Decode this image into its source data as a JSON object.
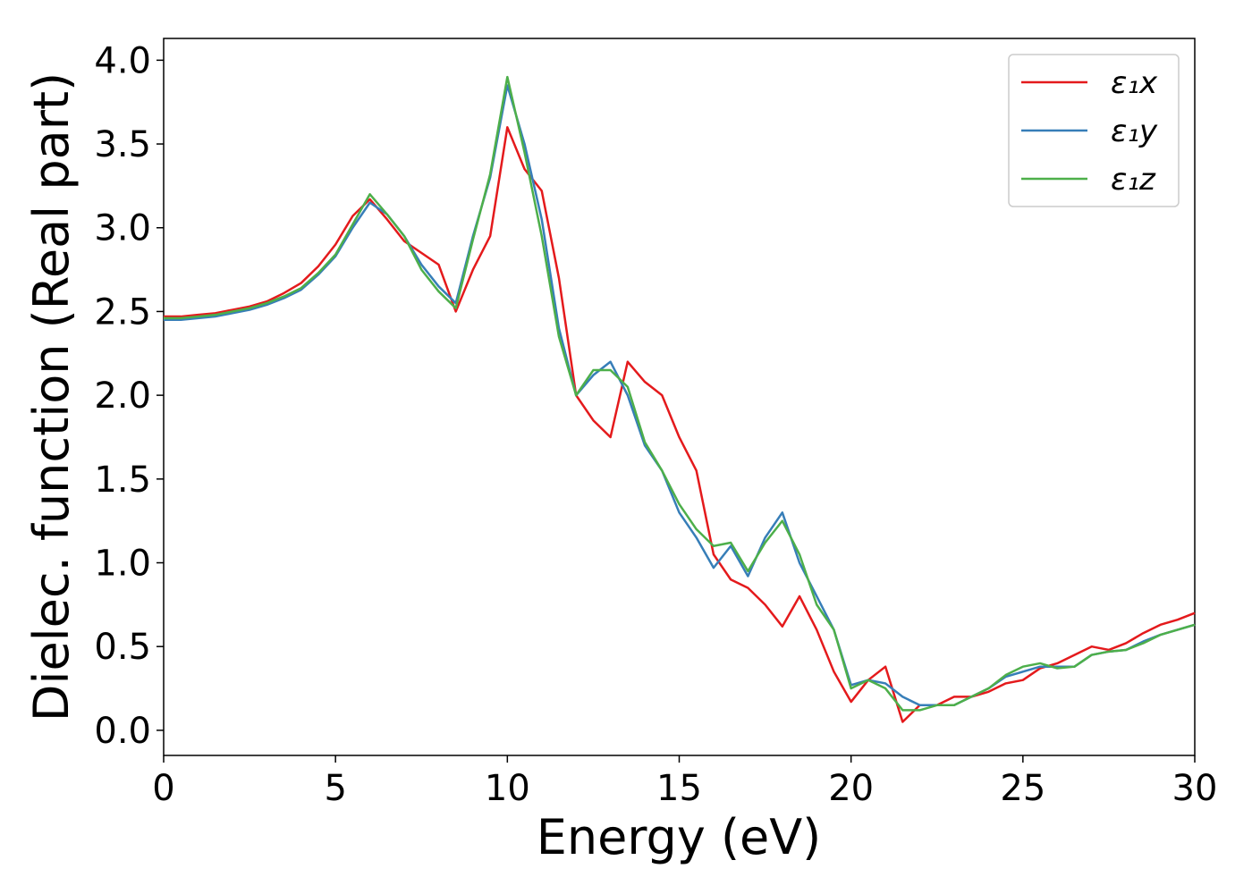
{
  "chart_data": {
    "type": "line",
    "xlabel": "Energy (eV)",
    "ylabel": "Dielec. function (Real part)",
    "x": [
      0,
      0.5,
      1,
      1.5,
      2,
      2.5,
      3,
      3.5,
      4,
      4.5,
      5,
      5.5,
      6,
      6.5,
      7,
      7.5,
      8,
      8.5,
      9,
      9.5,
      10,
      10.5,
      11,
      11.5,
      12,
      12.5,
      13,
      13.5,
      14,
      14.5,
      15,
      15.5,
      16,
      16.5,
      17,
      17.5,
      18,
      18.5,
      19,
      19.5,
      20,
      20.5,
      21,
      21.5,
      22,
      22.5,
      23,
      23.5,
      24,
      24.5,
      25,
      25.5,
      26,
      26.5,
      27,
      27.5,
      28,
      28.5,
      29,
      29.5,
      30
    ],
    "series": [
      {
        "name": "ε₁x",
        "color": "#e41a1c",
        "values": [
          2.47,
          2.47,
          2.48,
          2.49,
          2.51,
          2.53,
          2.56,
          2.61,
          2.67,
          2.77,
          2.9,
          3.07,
          3.17,
          3.05,
          2.92,
          2.85,
          2.78,
          2.5,
          2.75,
          2.95,
          3.6,
          3.35,
          3.22,
          2.7,
          2.0,
          1.85,
          1.75,
          2.2,
          2.08,
          2.0,
          1.75,
          1.55,
          1.05,
          0.9,
          0.85,
          0.75,
          0.62,
          0.8,
          0.6,
          0.35,
          0.17,
          0.3,
          0.38,
          0.05,
          0.15,
          0.15,
          0.2,
          0.2,
          0.23,
          0.28,
          0.3,
          0.37,
          0.4,
          0.45,
          0.5,
          0.48,
          0.52,
          0.58,
          0.63,
          0.66,
          0.7
        ]
      },
      {
        "name": "ε₁y",
        "color": "#377eb8",
        "values": [
          2.45,
          2.45,
          2.46,
          2.47,
          2.49,
          2.51,
          2.54,
          2.58,
          2.63,
          2.72,
          2.83,
          3.0,
          3.15,
          3.08,
          2.95,
          2.78,
          2.65,
          2.55,
          2.95,
          3.3,
          3.85,
          3.5,
          3.05,
          2.4,
          2.0,
          2.12,
          2.2,
          2.0,
          1.7,
          1.55,
          1.3,
          1.15,
          0.97,
          1.1,
          0.92,
          1.15,
          1.3,
          1.0,
          0.8,
          0.6,
          0.27,
          0.3,
          0.28,
          0.2,
          0.15,
          0.15,
          0.15,
          0.2,
          0.25,
          0.32,
          0.35,
          0.38,
          0.38,
          0.38,
          0.45,
          0.47,
          0.48,
          0.53,
          0.57,
          0.6,
          0.63
        ]
      },
      {
        "name": "ε₁z",
        "color": "#4daf4a",
        "values": [
          2.46,
          2.46,
          2.47,
          2.48,
          2.5,
          2.52,
          2.55,
          2.59,
          2.64,
          2.73,
          2.84,
          3.02,
          3.2,
          3.08,
          2.95,
          2.75,
          2.62,
          2.52,
          2.93,
          3.32,
          3.9,
          3.45,
          2.95,
          2.35,
          2.0,
          2.15,
          2.15,
          2.05,
          1.72,
          1.55,
          1.35,
          1.2,
          1.1,
          1.12,
          0.95,
          1.12,
          1.25,
          1.05,
          0.75,
          0.6,
          0.25,
          0.3,
          0.25,
          0.12,
          0.12,
          0.15,
          0.15,
          0.2,
          0.25,
          0.33,
          0.38,
          0.4,
          0.37,
          0.38,
          0.45,
          0.47,
          0.48,
          0.52,
          0.57,
          0.6,
          0.63
        ]
      }
    ],
    "xlim": [
      0,
      30
    ],
    "xticks": [
      0,
      5,
      10,
      15,
      20,
      25,
      30
    ],
    "ylim": [
      -0.15,
      4.13
    ],
    "yticks": [
      {
        "value": 0,
        "label": "0.0"
      },
      0.5,
      {
        "value": 1,
        "label": "1.0"
      },
      1.5,
      {
        "value": 2,
        "label": "2.0"
      },
      2.5,
      {
        "value": 3,
        "label": "3.0"
      },
      3.5,
      {
        "value": 4,
        "label": "4.0"
      }
    ],
    "legend": "upper right",
    "grid": false
  }
}
